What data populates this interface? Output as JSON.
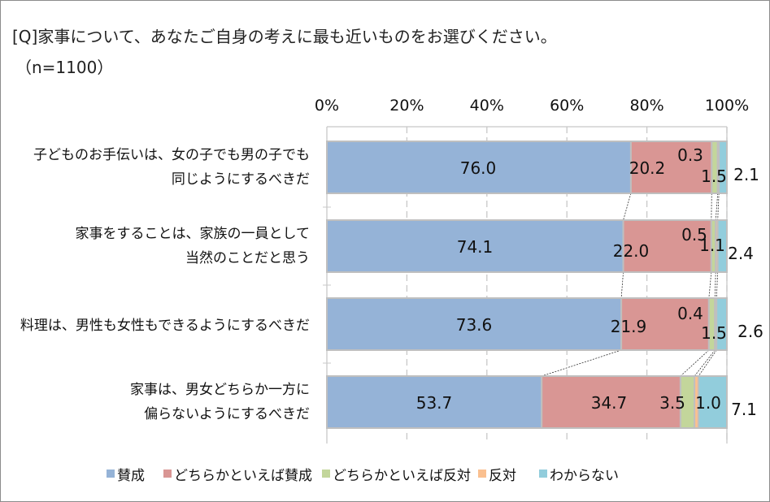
{
  "title": "[Q]家事について、あなたご自身の考えに最も近いものをお選びください。",
  "subtitle": "（n=1100）",
  "chart_data": {
    "type": "bar",
    "orientation": "horizontal",
    "stacked": "percent",
    "categories": [
      [
        "子どものお手伝いは、女の子でも男の子でも",
        "同じようにするべきだ"
      ],
      [
        "家事をすることは、家族の一員として",
        "当然のことだと思う"
      ],
      [
        "料理は、男性も女性もできるようにするべきだ"
      ],
      [
        "家事は、男女どちらか一方に",
        "偏らないようにするべきだ"
      ]
    ],
    "series": [
      {
        "name": "賛成",
        "color": "#95B3D7",
        "values": [
          76.0,
          74.1,
          73.6,
          53.7
        ]
      },
      {
        "name": "どちらかといえば賛成",
        "color": "#D99694",
        "values": [
          20.2,
          22.0,
          21.9,
          34.7
        ]
      },
      {
        "name": "どちらかといえば反対",
        "color": "#C3D69B",
        "values": [
          1.5,
          1.1,
          1.5,
          3.5
        ]
      },
      {
        "name": "反対",
        "color": "#FAC090",
        "values": [
          0.3,
          0.5,
          0.4,
          1.0
        ]
      },
      {
        "name": "わからない",
        "color": "#92CDDC",
        "values": [
          2.1,
          2.4,
          2.6,
          7.1
        ]
      }
    ],
    "xticks": [
      "0%",
      "20%",
      "40%",
      "60%",
      "80%",
      "100%"
    ],
    "xlim": [
      0,
      100
    ],
    "grid": true,
    "series_lines": true,
    "legend": "bottom"
  }
}
